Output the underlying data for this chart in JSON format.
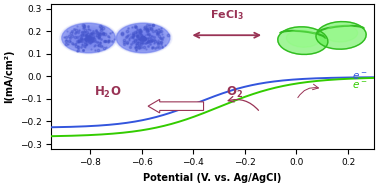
{
  "xlim": [
    -0.95,
    0.3
  ],
  "ylim": [
    -0.32,
    0.32
  ],
  "xticks": [
    -0.8,
    -0.6,
    -0.4,
    -0.2,
    0.0,
    0.2
  ],
  "yticks": [
    -0.3,
    -0.2,
    -0.1,
    0.0,
    0.1,
    0.2,
    0.3
  ],
  "xlabel": "Potential (V. vs. Ag/AgCl)",
  "ylabel": "I(mA/cm²)",
  "blue_color": "#3355dd",
  "green_color": "#33cc00",
  "arrow_color": "#993355",
  "bg_color": "#ffffff",
  "sphere_blue": "#6677ee",
  "sphere_blue_dark": "#4455cc",
  "bowl_green": "#55ee44",
  "bowl_green_dark": "#33bb22"
}
